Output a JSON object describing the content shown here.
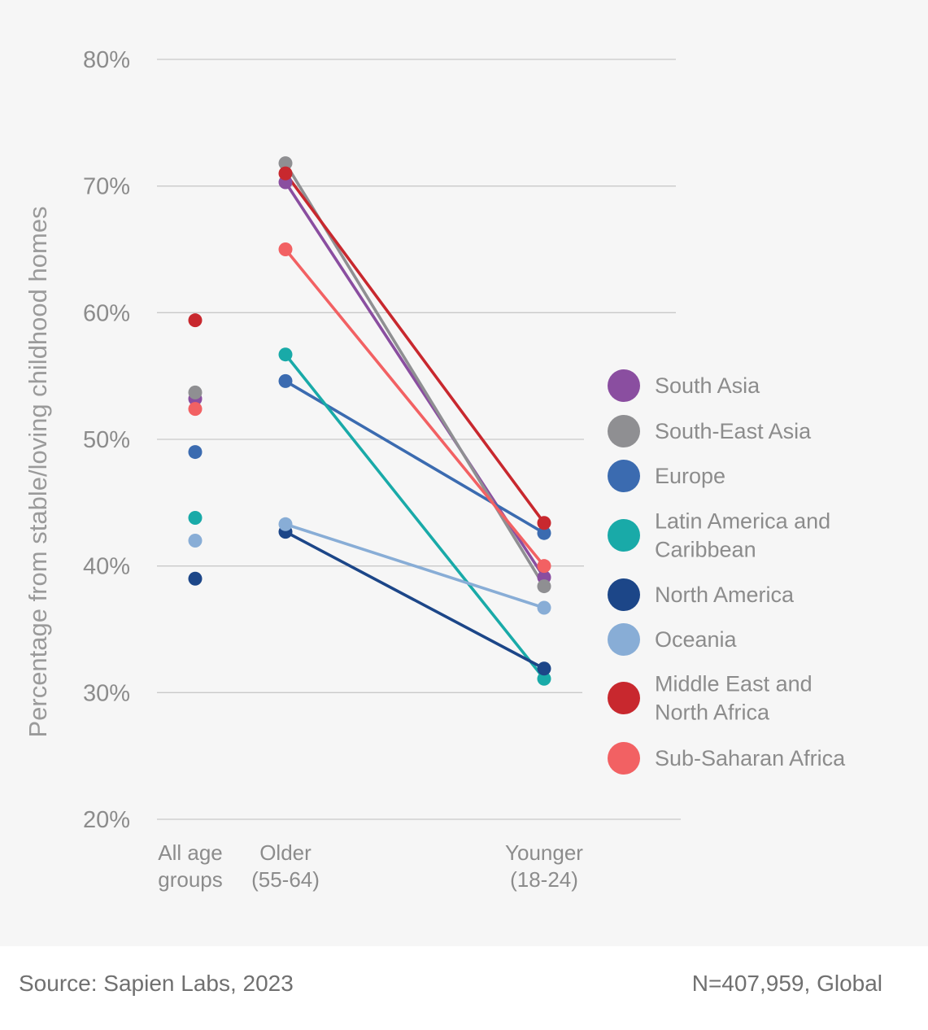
{
  "chart_data": {
    "type": "line",
    "ylabel": "Percentage from stable/loving childhood homes",
    "ylim": [
      20,
      80
    ],
    "yticks": [
      80,
      70,
      60,
      50,
      40,
      30,
      20
    ],
    "ytick_labels": [
      "80%",
      "70%",
      "60%",
      "50%",
      "40%",
      "30%",
      "20%"
    ],
    "grid": true,
    "legend_position": "right",
    "categories": [
      [
        "All age",
        "groups"
      ],
      [
        "Older",
        "(55-64)"
      ],
      [
        "Younger",
        "(18-24)"
      ]
    ],
    "series": [
      {
        "name": "South Asia",
        "color": "#8a4ea0",
        "values": [
          53.2,
          70.3,
          39.1
        ]
      },
      {
        "name": "South-East Asia",
        "color": "#8f8f92",
        "values": [
          53.7,
          71.8,
          38.4
        ]
      },
      {
        "name": "Europe",
        "color": "#3b6bb0",
        "values": [
          49.0,
          54.6,
          42.6
        ]
      },
      {
        "name": "Latin America and Caribbean",
        "color": "#19aaa8",
        "values": [
          43.8,
          56.7,
          31.1
        ]
      },
      {
        "name": "North America",
        "color": "#1c4688",
        "values": [
          39.0,
          42.7,
          31.9
        ]
      },
      {
        "name": "Oceania",
        "color": "#88add6",
        "values": [
          42.0,
          43.3,
          36.7
        ]
      },
      {
        "name": "Middle East and North Africa",
        "color": "#c8282e",
        "values": [
          59.4,
          71.0,
          43.4
        ]
      },
      {
        "name": "Sub-Saharan Africa",
        "color": "#f26163",
        "values": [
          52.4,
          65.0,
          40.0
        ]
      }
    ],
    "legend": [
      [
        "South Asia"
      ],
      [
        "South-East Asia"
      ],
      [
        "Europe"
      ],
      [
        "Latin America and",
        "Caribbean"
      ],
      [
        "North America"
      ],
      [
        "Oceania"
      ],
      [
        "Middle East and",
        "North Africa"
      ],
      [
        "Sub-Saharan Africa"
      ]
    ]
  },
  "footer": {
    "source": "Source: Sapien Labs, 2023",
    "sample": "N=407,959, Global"
  }
}
